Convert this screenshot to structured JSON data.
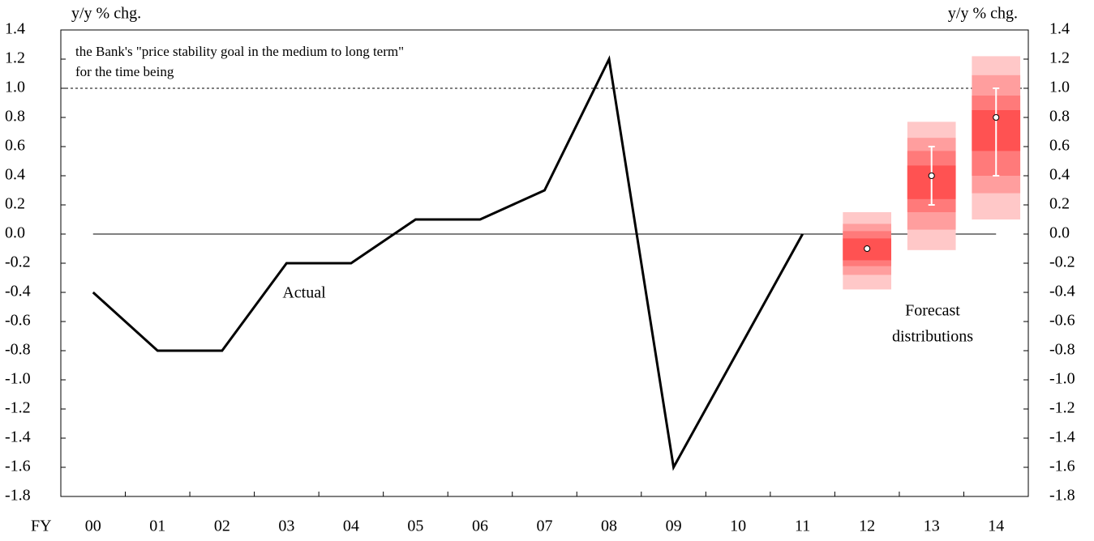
{
  "chart_data": {
    "type": "line",
    "ylabel": "y/y % chg.",
    "y2label": "y/y % chg.",
    "xlabel": "FY",
    "categories": [
      "00",
      "01",
      "02",
      "03",
      "04",
      "05",
      "06",
      "07",
      "08",
      "09",
      "10",
      "11",
      "12",
      "13",
      "14"
    ],
    "series": [
      {
        "name": "Actual",
        "color": "#000000",
        "values": [
          -0.4,
          -0.8,
          -0.8,
          -0.2,
          -0.2,
          0.1,
          0.1,
          0.3,
          1.2,
          -1.6,
          -0.8,
          0.0,
          null,
          null,
          null
        ]
      }
    ],
    "forecast_label": [
      "Forecast",
      "distributions"
    ],
    "forecast_band_colors": [
      "#ffc8c8",
      "#ff9e9e",
      "#ff7a7a",
      "#ff5252"
    ],
    "forecasts": [
      {
        "category": "12",
        "median": -0.1,
        "range": [
          -0.1,
          -0.1
        ],
        "bands": [
          [
            -0.38,
            0.15
          ],
          [
            -0.28,
            0.07
          ],
          [
            -0.22,
            0.02
          ],
          [
            -0.18,
            -0.03
          ]
        ]
      },
      {
        "category": "13",
        "median": 0.4,
        "range": [
          0.2,
          0.6
        ],
        "bands": [
          [
            -0.11,
            0.77
          ],
          [
            0.03,
            0.66
          ],
          [
            0.15,
            0.57
          ],
          [
            0.24,
            0.47
          ]
        ]
      },
      {
        "category": "14",
        "median": 0.8,
        "range": [
          0.4,
          1.0
        ],
        "bands": [
          [
            0.1,
            1.22
          ],
          [
            0.28,
            1.09
          ],
          [
            0.4,
            0.95
          ],
          [
            0.57,
            0.85
          ]
        ]
      }
    ],
    "reference_line": {
      "value": 1.0,
      "label": [
        "the Bank's \"price stability goal in the medium to long term\"",
        "for the time being"
      ]
    },
    "ylim": [
      -1.8,
      1.4
    ],
    "yticks": [
      -1.8,
      -1.6,
      -1.4,
      -1.2,
      {
        "value": -1,
        "label": "-1.0"
      },
      -0.8,
      -0.6,
      -0.4,
      -0.2,
      {
        "value": 0,
        "label": "0.0"
      },
      0.2,
      0.4,
      0.6,
      0.8,
      {
        "value": 1,
        "label": "1.0"
      },
      1.2,
      1.4
    ],
    "y2lim": [
      -1.8,
      1.4
    ],
    "y2ticks": [
      -1.8,
      -1.6,
      -1.4,
      -1.2,
      {
        "value": -1,
        "label": "-1.0"
      },
      -0.8,
      -0.6,
      -0.4,
      -0.2,
      {
        "value": 0,
        "label": "0.0"
      },
      0.2,
      0.4,
      0.6,
      0.8,
      {
        "value": 1,
        "label": "1.0"
      },
      1.2,
      1.4
    ],
    "negative_tick_color": "#ff0000",
    "grid": false
  }
}
